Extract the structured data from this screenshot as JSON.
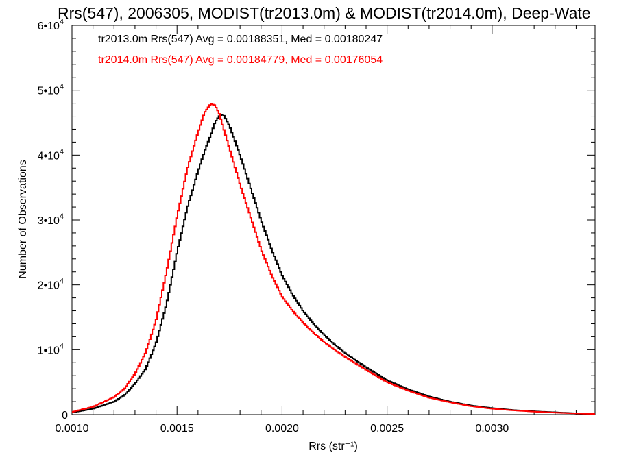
{
  "chart_data": {
    "type": "line",
    "title": "Rrs(547), 2006305, MODIST(tr2013.0m) & MODIST(tr2014.0m), Deep-Wate",
    "xlabel": "Rrs (str⁻¹)",
    "ylabel": "Number of Observations",
    "xlim": [
      0.001,
      0.00349
    ],
    "ylim": [
      0,
      60000
    ],
    "x_ticks": [
      0.001,
      0.0015,
      0.002,
      0.0025,
      0.003
    ],
    "x_tick_labels": [
      "0.0010",
      "0.0015",
      "0.0020",
      "0.0025",
      "0.0030"
    ],
    "y_ticks": [
      0,
      10000,
      20000,
      30000,
      40000,
      50000,
      60000
    ],
    "y_tick_labels": [
      {
        "base": "0",
        "exp": ""
      },
      {
        "base": "1•10",
        "exp": "4"
      },
      {
        "base": "2•10",
        "exp": "4"
      },
      {
        "base": "3•10",
        "exp": "4"
      },
      {
        "base": "4•10",
        "exp": "4"
      },
      {
        "base": "5•10",
        "exp": "4"
      },
      {
        "base": "6•10",
        "exp": "4"
      }
    ],
    "annotations": [
      {
        "text": "tr2013.0m Rrs(547) Avg = 0.00188351, Med = 0.00180247",
        "color": "#000000"
      },
      {
        "text": "tr2014.0m Rrs(547) Avg = 0.00184779, Med = 0.00176054",
        "color": "#ff0000"
      }
    ],
    "series": [
      {
        "color": "#000000",
        "x": [
          0.001,
          0.0011,
          0.0012,
          0.00125,
          0.0013,
          0.00135,
          0.0014,
          0.00145,
          0.0015,
          0.00155,
          0.0016,
          0.00163,
          0.00166,
          0.00168,
          0.0017,
          0.00172,
          0.00175,
          0.0018,
          0.00185,
          0.0019,
          0.00195,
          0.002,
          0.00205,
          0.0021,
          0.00215,
          0.0022,
          0.00225,
          0.0023,
          0.0024,
          0.0025,
          0.0026,
          0.0027,
          0.0028,
          0.0029,
          0.003,
          0.0031,
          0.0032,
          0.0033,
          0.0034,
          0.00349
        ],
        "values": [
          300,
          900,
          2000,
          3000,
          4800,
          7000,
          11000,
          17000,
          25000,
          32000,
          37500,
          40500,
          43000,
          45000,
          46000,
          46300,
          44500,
          40000,
          35000,
          30000,
          25500,
          21500,
          18500,
          16000,
          14000,
          12300,
          10800,
          9500,
          7300,
          5300,
          3900,
          2800,
          2000,
          1400,
          1000,
          700,
          500,
          350,
          200,
          100
        ]
      },
      {
        "color": "#ff0000",
        "x": [
          0.001,
          0.0011,
          0.0012,
          0.00125,
          0.0013,
          0.00135,
          0.0014,
          0.00145,
          0.0015,
          0.00155,
          0.0016,
          0.00163,
          0.00166,
          0.00168,
          0.0017,
          0.00172,
          0.00175,
          0.0018,
          0.00185,
          0.0019,
          0.00195,
          0.002,
          0.00205,
          0.0021,
          0.00215,
          0.0022,
          0.00225,
          0.0023,
          0.0024,
          0.0025,
          0.0026,
          0.0027,
          0.0028,
          0.0029,
          0.003,
          0.0031,
          0.0032,
          0.0033,
          0.0034,
          0.00349
        ],
        "values": [
          400,
          1200,
          2700,
          4000,
          6300,
          9500,
          14500,
          22000,
          30500,
          38000,
          43500,
          46500,
          47900,
          47700,
          46500,
          44300,
          41000,
          35500,
          30500,
          25500,
          21500,
          18200,
          16000,
          14200,
          12600,
          11200,
          10000,
          8900,
          6900,
          5000,
          3700,
          2600,
          1900,
          1300,
          900,
          650,
          450,
          300,
          180,
          90
        ]
      }
    ]
  }
}
